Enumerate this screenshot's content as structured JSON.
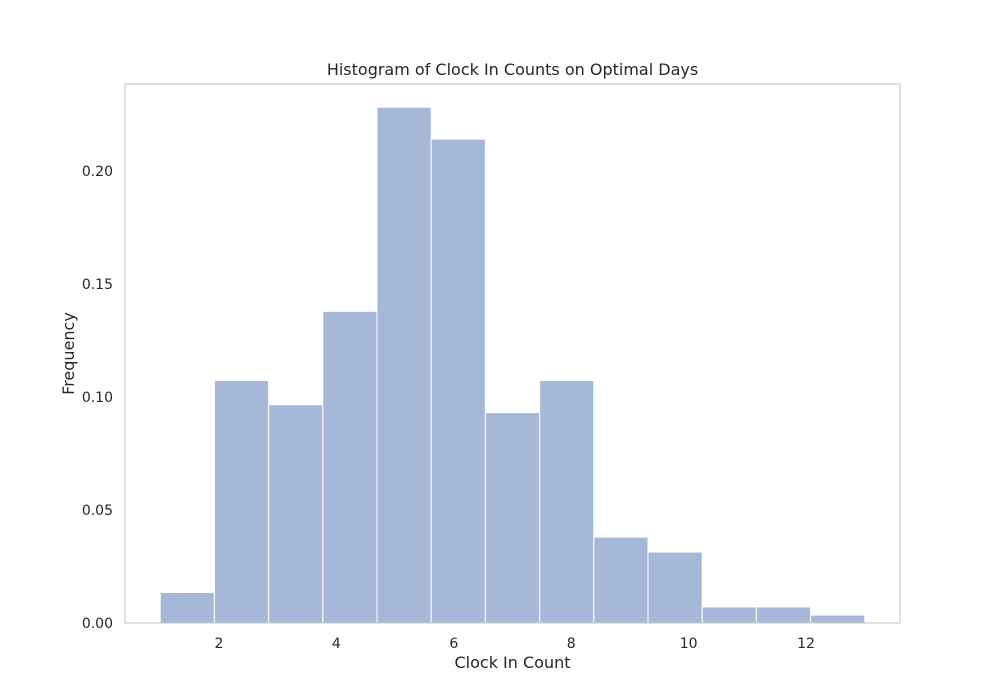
{
  "chart_data": {
    "type": "bar",
    "title": "Histogram of Clock In Counts on Optimal Days",
    "xlabel": "Clock In Count",
    "ylabel": "Frequency",
    "bin_edges": [
      1.0,
      1.923,
      2.846,
      3.769,
      4.692,
      5.615,
      6.538,
      7.462,
      8.385,
      9.308,
      10.231,
      11.154,
      12.077,
      13.0
    ],
    "values": [
      0.0135,
      0.1073,
      0.0966,
      0.1379,
      0.2282,
      0.2141,
      0.0931,
      0.1073,
      0.038,
      0.0314,
      0.0071,
      0.0071,
      0.0035
    ],
    "xlim": [
      0.4,
      13.6
    ],
    "ylim": [
      0,
      0.2385
    ],
    "xticks": [
      2,
      4,
      6,
      8,
      10,
      12
    ],
    "xtick_labels": [
      "2",
      "4",
      "6",
      "8",
      "10",
      "12"
    ],
    "yticks": [
      0.0,
      0.05,
      0.1,
      0.15,
      0.2
    ],
    "ytick_labels": [
      "0.00",
      "0.05",
      "0.10",
      "0.15",
      "0.20"
    ],
    "grid": false,
    "bar_color": "#a6b8d8",
    "bar_edge_color": "#ffffff",
    "frame_color": "#cccccc"
  }
}
